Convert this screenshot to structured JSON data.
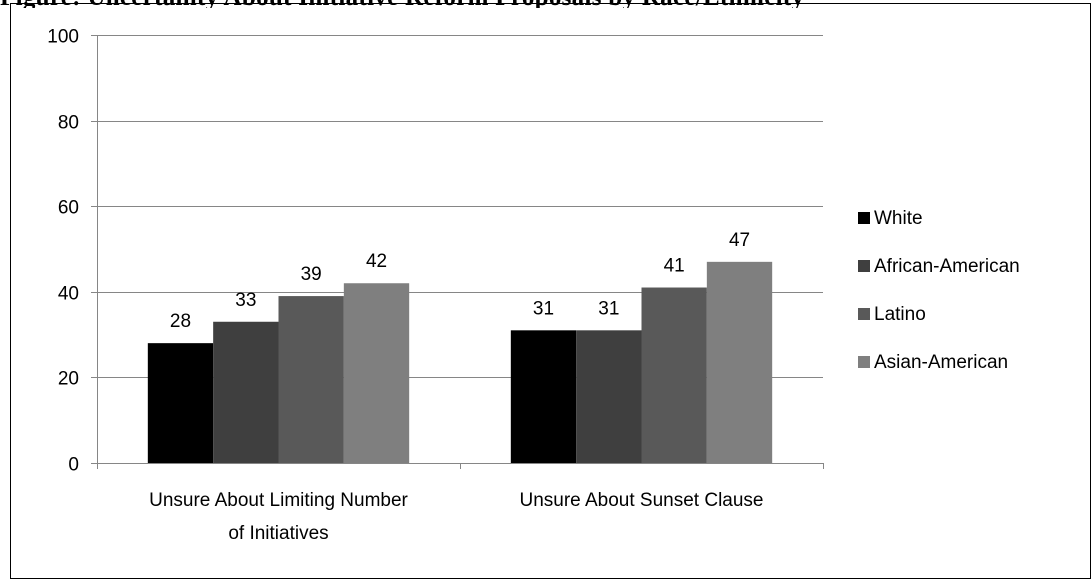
{
  "figure_title": "Figure: Uncertainty About Initiative Reform Proposals by Race/Ethnicity",
  "chart_data": {
    "type": "bar",
    "title": "",
    "xlabel": "",
    "ylabel": "",
    "ylim": [
      0,
      100
    ],
    "yticks": [
      0,
      20,
      40,
      60,
      80,
      100
    ],
    "grid": true,
    "legend_position": "right",
    "categories": [
      [
        "Unsure About Limiting Number",
        "of Initiatives"
      ],
      [
        "Unsure About Sunset Clause"
      ]
    ],
    "series": [
      {
        "name": "White",
        "color": "#000000",
        "values": [
          28,
          31
        ]
      },
      {
        "name": "African-American",
        "color": "#3f3f3f",
        "values": [
          33,
          31
        ]
      },
      {
        "name": "Latino",
        "color": "#595959",
        "values": [
          39,
          41
        ]
      },
      {
        "name": "Asian-American",
        "color": "#7f7f7f",
        "values": [
          42,
          47
        ]
      }
    ]
  }
}
